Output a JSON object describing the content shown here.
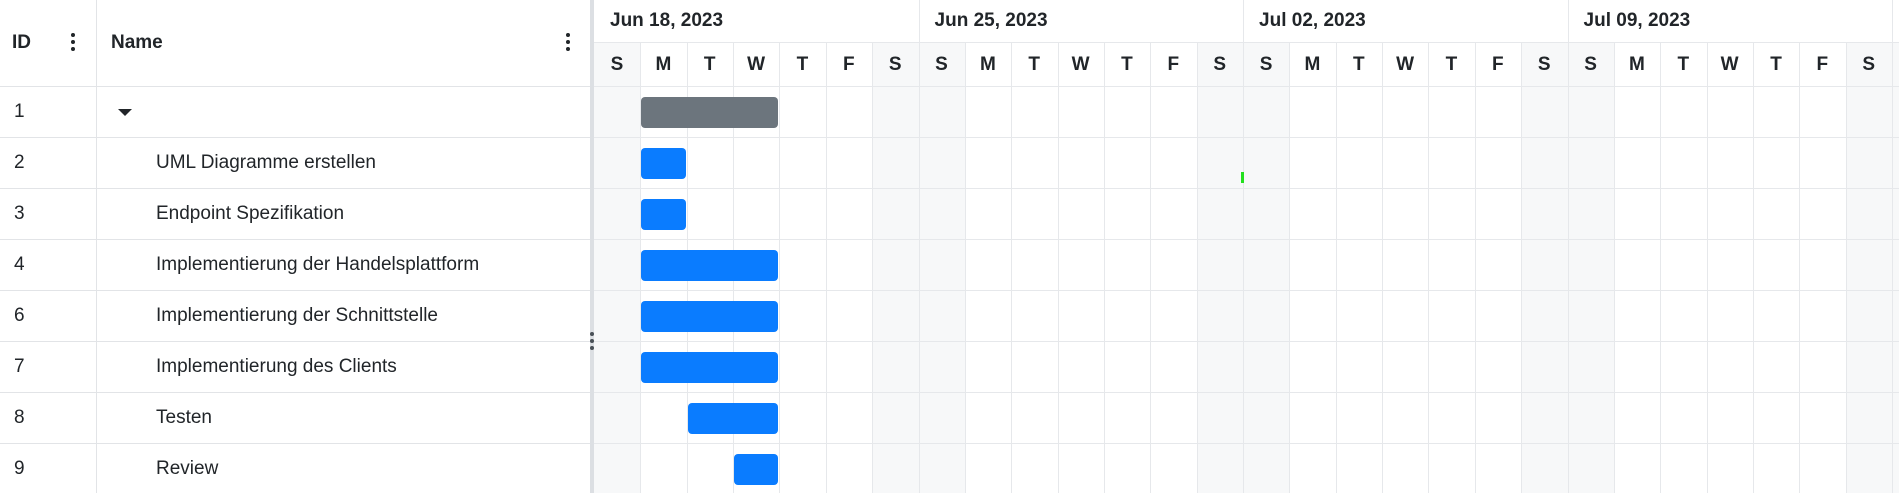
{
  "grid": {
    "columns": {
      "id": "ID",
      "name": "Name"
    },
    "rows": [
      {
        "id": "1",
        "name": "",
        "expanded": true,
        "summary": true
      },
      {
        "id": "2",
        "name": "UML Diagramme erstellen"
      },
      {
        "id": "3",
        "name": "Endpoint Spezifikation"
      },
      {
        "id": "4",
        "name": "Implementierung der Handelsplattform"
      },
      {
        "id": "6",
        "name": "Implementierung der Schnittstelle"
      },
      {
        "id": "7",
        "name": "Implementierung des Clients"
      },
      {
        "id": "8",
        "name": "Testen"
      },
      {
        "id": "9",
        "name": "Review"
      }
    ]
  },
  "timeline": {
    "weeks": [
      "Jun 18, 2023",
      "Jun 25, 2023",
      "Jul 02, 2023",
      "Jul 09, 2023"
    ],
    "day_letters": [
      "S",
      "M",
      "T",
      "W",
      "T",
      "F",
      "S"
    ],
    "bars": [
      {
        "row_id": "1",
        "start": "2023-06-19",
        "end": "2023-06-21",
        "kind": "summary"
      },
      {
        "row_id": "2",
        "start": "2023-06-19",
        "end": "2023-06-19",
        "kind": "task"
      },
      {
        "row_id": "3",
        "start": "2023-06-19",
        "end": "2023-06-19",
        "kind": "task"
      },
      {
        "row_id": "4",
        "start": "2023-06-19",
        "end": "2023-06-21",
        "kind": "task"
      },
      {
        "row_id": "6",
        "start": "2023-06-19",
        "end": "2023-06-21",
        "kind": "task"
      },
      {
        "row_id": "7",
        "start": "2023-06-19",
        "end": "2023-06-21",
        "kind": "task"
      },
      {
        "row_id": "8",
        "start": "2023-06-20",
        "end": "2023-06-21",
        "kind": "task"
      },
      {
        "row_id": "9",
        "start": "2023-06-21",
        "end": "2023-06-21",
        "kind": "task"
      }
    ],
    "today_marker_date": "2023-07-02"
  },
  "colors": {
    "task_bar": "#0a7cff",
    "summary_bar": "#6c757d",
    "weekend_shade": "#f7f8f9",
    "today_marker": "#22e01e"
  }
}
